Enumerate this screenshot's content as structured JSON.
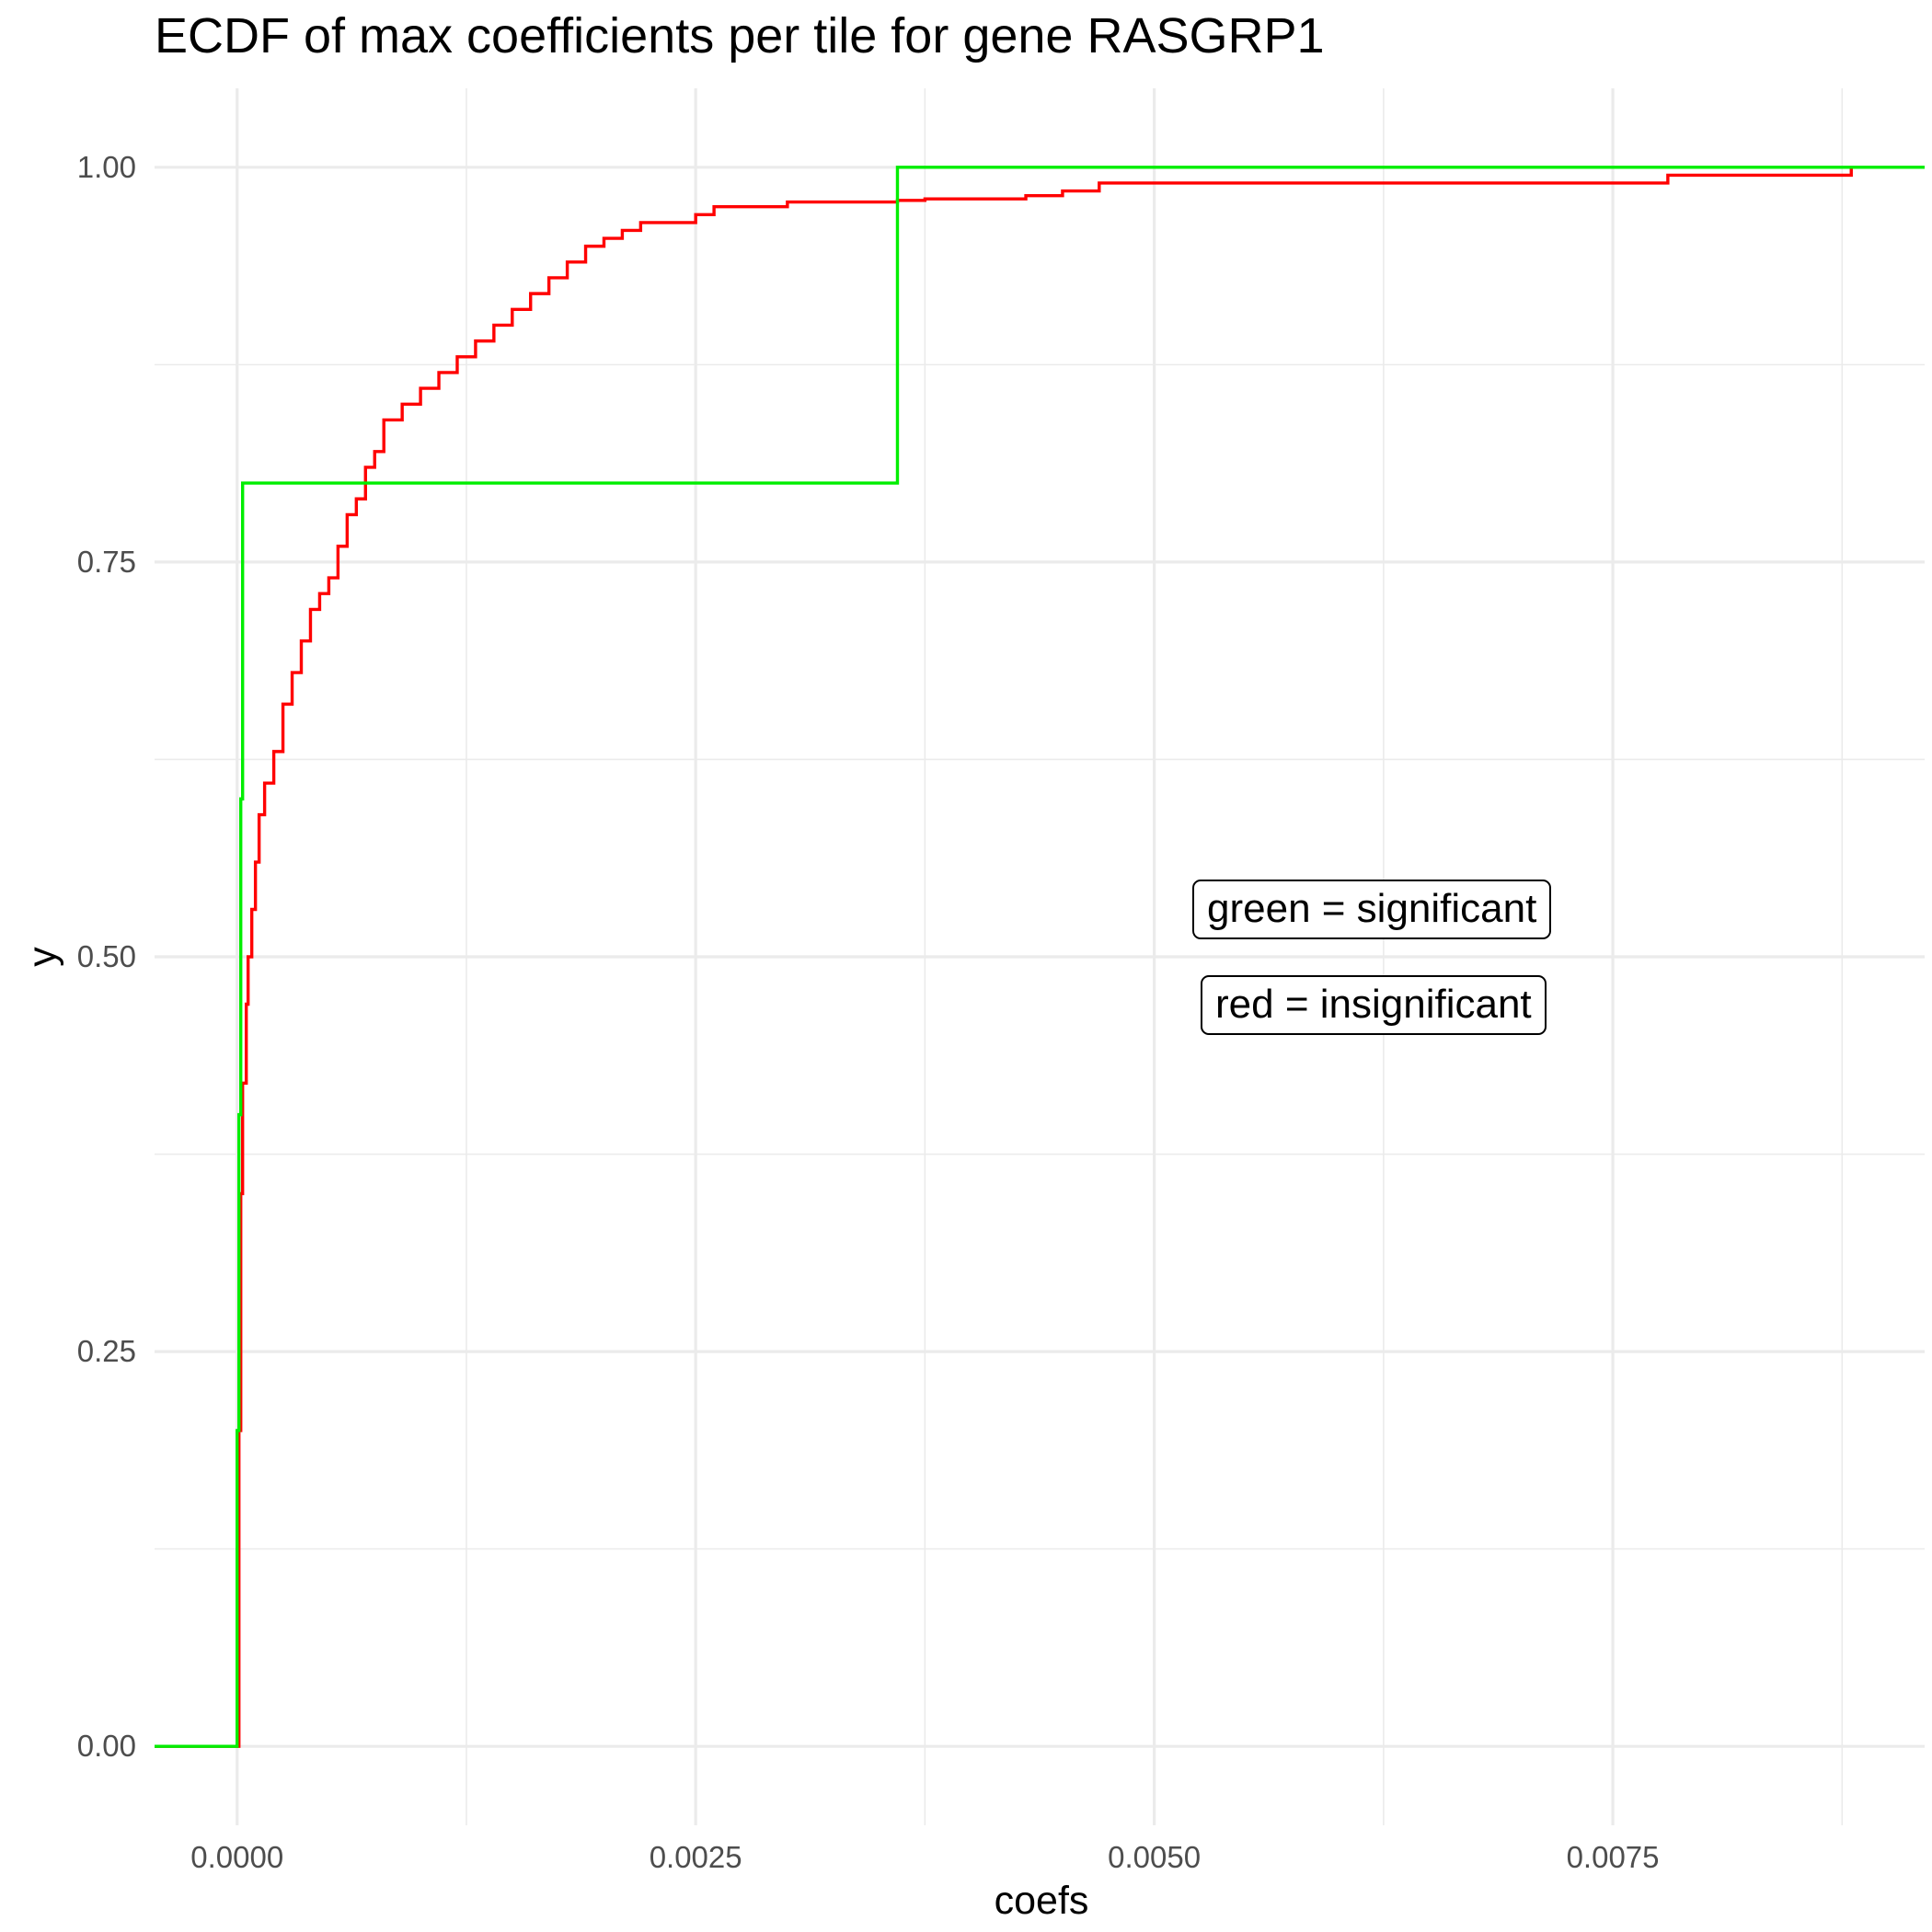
{
  "chart_data": {
    "type": "line",
    "title": "ECDF of max coefficients per tile for gene RASGRP1",
    "xlabel": "coefs",
    "ylabel": "y",
    "xlim": [
      -0.00045,
      0.0092
    ],
    "ylim": [
      -0.05,
      1.05
    ],
    "x_ticks": [
      0,
      0.0025,
      0.005,
      0.0075
    ],
    "x_tick_labels": [
      "0.0000",
      "0.0025",
      "0.0050",
      "0.0075"
    ],
    "y_ticks": [
      0,
      0.25,
      0.5,
      0.75,
      1.0
    ],
    "y_tick_labels": [
      "0.00",
      "0.25",
      "0.50",
      "0.75",
      "1.00"
    ],
    "grid": true,
    "series": [
      {
        "color": "#ff0000",
        "points": [
          [
            -0.00045,
            0
          ],
          [
            0,
            0
          ],
          [
            1e-05,
            0.2
          ],
          [
            2e-05,
            0.35
          ],
          [
            3e-05,
            0.42
          ],
          [
            5e-05,
            0.47
          ],
          [
            6e-05,
            0.5
          ],
          [
            8e-05,
            0.53
          ],
          [
            0.0001,
            0.56
          ],
          [
            0.00012,
            0.59
          ],
          [
            0.00015,
            0.61
          ],
          [
            0.0002,
            0.63
          ],
          [
            0.00025,
            0.66
          ],
          [
            0.0003,
            0.68
          ],
          [
            0.00035,
            0.7
          ],
          [
            0.0004,
            0.72
          ],
          [
            0.00045,
            0.73
          ],
          [
            0.0005,
            0.74
          ],
          [
            0.00055,
            0.76
          ],
          [
            0.0006,
            0.78
          ],
          [
            0.00065,
            0.79
          ],
          [
            0.0007,
            0.81
          ],
          [
            0.00075,
            0.82
          ],
          [
            0.0008,
            0.84
          ],
          [
            0.0009,
            0.85
          ],
          [
            0.001,
            0.86
          ],
          [
            0.0011,
            0.87
          ],
          [
            0.0012,
            0.88
          ],
          [
            0.0013,
            0.89
          ],
          [
            0.0014,
            0.9
          ],
          [
            0.0015,
            0.91
          ],
          [
            0.0016,
            0.92
          ],
          [
            0.0017,
            0.93
          ],
          [
            0.0018,
            0.94
          ],
          [
            0.0019,
            0.95
          ],
          [
            0.002,
            0.955
          ],
          [
            0.0021,
            0.96
          ],
          [
            0.0022,
            0.965
          ],
          [
            0.0025,
            0.97
          ],
          [
            0.0026,
            0.975
          ],
          [
            0.003,
            0.978
          ],
          [
            0.0036,
            0.979
          ],
          [
            0.00375,
            0.98
          ],
          [
            0.0043,
            0.982
          ],
          [
            0.0045,
            0.985
          ],
          [
            0.0047,
            0.99
          ],
          [
            0.0078,
            0.995
          ],
          [
            0.0088,
            1.0
          ]
        ]
      },
      {
        "color": "#00ee00",
        "points": [
          [
            -0.00045,
            0
          ],
          [
            0,
            0
          ],
          [
            0,
            0.2
          ],
          [
            1e-05,
            0.2
          ],
          [
            1e-05,
            0.4
          ],
          [
            2e-05,
            0.4
          ],
          [
            2e-05,
            0.6
          ],
          [
            3e-05,
            0.6
          ],
          [
            3e-05,
            0.8
          ],
          [
            0.0036,
            0.8
          ],
          [
            0.0036,
            1.0
          ],
          [
            0.0092,
            1.0
          ]
        ]
      }
    ]
  },
  "annotations": {
    "green_note": "green = significant",
    "red_note": "red = insignificant"
  }
}
